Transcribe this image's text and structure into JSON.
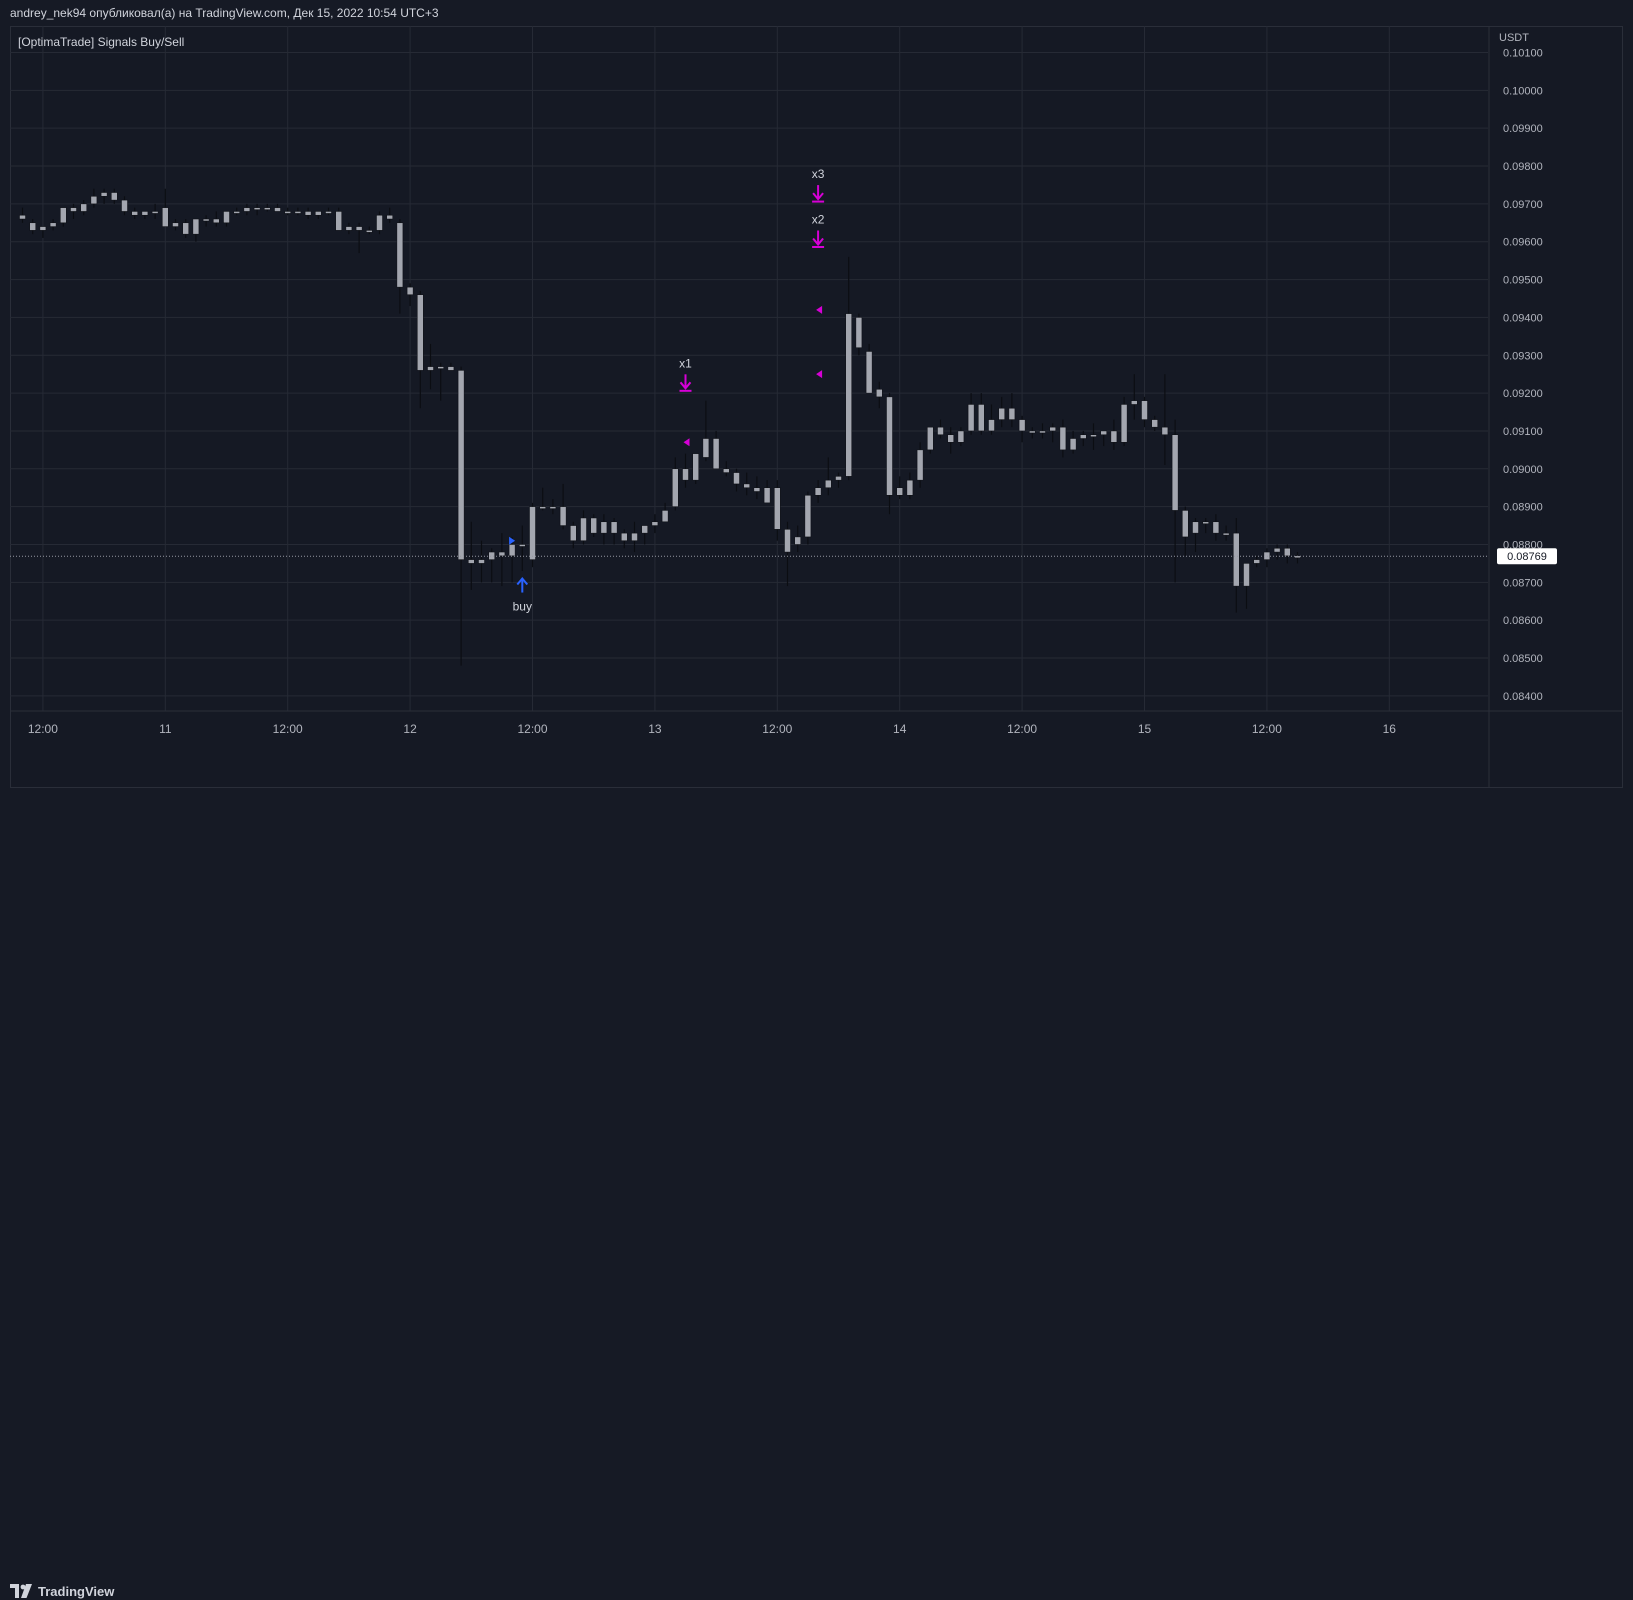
{
  "header": {
    "publisher_line": "andrey_nek94 опубликовал(а) на TradingView.com, Дек 15, 2022 10:54 UTC+3"
  },
  "indicator": {
    "label": "[OptimaTrade] Signals Buy/Sell"
  },
  "footer": {
    "brand": "TradingView"
  },
  "colors": {
    "background": "#151924",
    "grid": "#262a35",
    "candle_body": "#a3a6af",
    "wick": "#0b0d12",
    "signal_magenta": "#d600d6",
    "signal_blue": "#2962ff",
    "axis_text": "#b2b5be"
  },
  "chart_data": {
    "type": "candlestick",
    "currency": "USDT",
    "ylim": [
      0.0836,
      0.1017
    ],
    "y_ticks": [
      "0.08400",
      "0.08500",
      "0.08600",
      "0.08700",
      "0.08800",
      "0.08900",
      "0.09000",
      "0.09100",
      "0.09200",
      "0.09300",
      "0.09400",
      "0.09500",
      "0.09600",
      "0.09700",
      "0.09800",
      "0.09900",
      "0.10000",
      "0.10100"
    ],
    "x_ticks": [
      {
        "label": "12:00",
        "idx": 2
      },
      {
        "label": "11",
        "idx": 14
      },
      {
        "label": "12:00",
        "idx": 26
      },
      {
        "label": "12",
        "idx": 38
      },
      {
        "label": "12:00",
        "idx": 50
      },
      {
        "label": "13",
        "idx": 62
      },
      {
        "label": "12:00",
        "idx": 74
      },
      {
        "label": "14",
        "idx": 86
      },
      {
        "label": "12:00",
        "idx": 98
      },
      {
        "label": "15",
        "idx": 110
      },
      {
        "label": "12:00",
        "idx": 122
      },
      {
        "label": "16",
        "idx": 134
      }
    ],
    "candles": [
      [
        0.0967,
        0.0969,
        0.0965,
        0.0966
      ],
      [
        0.0965,
        0.0966,
        0.0962,
        0.0963
      ],
      [
        0.0963,
        0.0964,
        0.0961,
        0.0964
      ],
      [
        0.0964,
        0.0966,
        0.0963,
        0.0965
      ],
      [
        0.0965,
        0.0969,
        0.0964,
        0.0969
      ],
      [
        0.0969,
        0.097,
        0.0966,
        0.0968
      ],
      [
        0.0968,
        0.0971,
        0.0967,
        0.097
      ],
      [
        0.097,
        0.0974,
        0.0969,
        0.0972
      ],
      [
        0.0972,
        0.0974,
        0.097,
        0.0973
      ],
      [
        0.0973,
        0.0974,
        0.097,
        0.0971
      ],
      [
        0.0971,
        0.0972,
        0.0967,
        0.0968
      ],
      [
        0.0968,
        0.0969,
        0.0966,
        0.0967
      ],
      [
        0.0967,
        0.0968,
        0.0966,
        0.0968
      ],
      [
        0.0968,
        0.097,
        0.0966,
        0.0968
      ],
      [
        0.0969,
        0.0974,
        0.0964,
        0.0964
      ],
      [
        0.0964,
        0.0966,
        0.0963,
        0.0965
      ],
      [
        0.0965,
        0.0966,
        0.0961,
        0.0962
      ],
      [
        0.0962,
        0.0966,
        0.096,
        0.0966
      ],
      [
        0.0966,
        0.0967,
        0.0964,
        0.0966
      ],
      [
        0.0966,
        0.0968,
        0.0964,
        0.0965
      ],
      [
        0.0965,
        0.0968,
        0.0964,
        0.0968
      ],
      [
        0.0968,
        0.0969,
        0.0967,
        0.0968
      ],
      [
        0.0968,
        0.097,
        0.0967,
        0.0969
      ],
      [
        0.0969,
        0.097,
        0.0967,
        0.0969
      ],
      [
        0.0969,
        0.097,
        0.0968,
        0.0969
      ],
      [
        0.0969,
        0.097,
        0.0968,
        0.0968
      ],
      [
        0.0968,
        0.0969,
        0.0967,
        0.0968
      ],
      [
        0.0968,
        0.0969,
        0.0967,
        0.0968
      ],
      [
        0.0968,
        0.0969,
        0.0966,
        0.0967
      ],
      [
        0.0967,
        0.0968,
        0.0966,
        0.0968
      ],
      [
        0.0968,
        0.0969,
        0.0967,
        0.0968
      ],
      [
        0.0968,
        0.0969,
        0.0963,
        0.0963
      ],
      [
        0.0963,
        0.0965,
        0.0962,
        0.0964
      ],
      [
        0.0964,
        0.0965,
        0.0957,
        0.0963
      ],
      [
        0.0963,
        0.0964,
        0.0962,
        0.0963
      ],
      [
        0.0963,
        0.0968,
        0.0962,
        0.0967
      ],
      [
        0.0967,
        0.0969,
        0.0965,
        0.0966
      ],
      [
        0.0965,
        0.0966,
        0.0941,
        0.0948
      ],
      [
        0.0948,
        0.0949,
        0.0943,
        0.0946
      ],
      [
        0.0946,
        0.0947,
        0.0916,
        0.0926
      ],
      [
        0.0926,
        0.0933,
        0.0921,
        0.0927
      ],
      [
        0.0927,
        0.0928,
        0.0918,
        0.0927
      ],
      [
        0.0927,
        0.0928,
        0.0926,
        0.0926
      ],
      [
        0.0926,
        0.0927,
        0.0848,
        0.0876
      ],
      [
        0.0876,
        0.0886,
        0.0868,
        0.0875
      ],
      [
        0.0875,
        0.0881,
        0.087,
        0.0876
      ],
      [
        0.0876,
        0.0879,
        0.087,
        0.0878
      ],
      [
        0.0878,
        0.0883,
        0.0869,
        0.0877
      ],
      [
        0.0877,
        0.0882,
        0.087,
        0.088
      ],
      [
        0.088,
        0.0885,
        0.0873,
        0.088
      ],
      [
        0.0876,
        0.0891,
        0.0874,
        0.089
      ],
      [
        0.089,
        0.0895,
        0.0889,
        0.089
      ],
      [
        0.089,
        0.0892,
        0.0888,
        0.089
      ],
      [
        0.089,
        0.0896,
        0.0884,
        0.0885
      ],
      [
        0.0885,
        0.0886,
        0.0879,
        0.0881
      ],
      [
        0.0881,
        0.0889,
        0.088,
        0.0887
      ],
      [
        0.0887,
        0.0888,
        0.0882,
        0.0883
      ],
      [
        0.0883,
        0.0888,
        0.088,
        0.0886
      ],
      [
        0.0886,
        0.0887,
        0.088,
        0.0883
      ],
      [
        0.0883,
        0.0884,
        0.0879,
        0.0881
      ],
      [
        0.0881,
        0.0886,
        0.0878,
        0.0883
      ],
      [
        0.0883,
        0.0884,
        0.088,
        0.0885
      ],
      [
        0.0885,
        0.0888,
        0.0883,
        0.0886
      ],
      [
        0.0886,
        0.0891,
        0.0886,
        0.0889
      ],
      [
        0.089,
        0.0903,
        0.0889,
        0.09
      ],
      [
        0.09,
        0.0904,
        0.0895,
        0.0897
      ],
      [
        0.0897,
        0.0904,
        0.0896,
        0.0904
      ],
      [
        0.0903,
        0.0918,
        0.0902,
        0.0908
      ],
      [
        0.0908,
        0.091,
        0.0901,
        0.09
      ],
      [
        0.09,
        0.0902,
        0.0898,
        0.0899
      ],
      [
        0.0899,
        0.09,
        0.0894,
        0.0896
      ],
      [
        0.0896,
        0.0899,
        0.0893,
        0.0895
      ],
      [
        0.0895,
        0.0898,
        0.0892,
        0.0894
      ],
      [
        0.0895,
        0.0897,
        0.0891,
        0.0891
      ],
      [
        0.0895,
        0.0897,
        0.0881,
        0.0884
      ],
      [
        0.0884,
        0.0886,
        0.0869,
        0.0878
      ],
      [
        0.088,
        0.0885,
        0.0878,
        0.0882
      ],
      [
        0.0882,
        0.0894,
        0.088,
        0.0893
      ],
      [
        0.0893,
        0.0897,
        0.0891,
        0.0895
      ],
      [
        0.0895,
        0.0903,
        0.0893,
        0.0897
      ],
      [
        0.0897,
        0.0899,
        0.0895,
        0.0898
      ],
      [
        0.0898,
        0.0956,
        0.0897,
        0.0941
      ],
      [
        0.094,
        0.0941,
        0.093,
        0.0932
      ],
      [
        0.0931,
        0.0933,
        0.092,
        0.092
      ],
      [
        0.0921,
        0.0923,
        0.0916,
        0.0919
      ],
      [
        0.0919,
        0.092,
        0.0888,
        0.0893
      ],
      [
        0.0895,
        0.0898,
        0.0892,
        0.0893
      ],
      [
        0.0893,
        0.0899,
        0.0892,
        0.0897
      ],
      [
        0.0897,
        0.0907,
        0.0895,
        0.0905
      ],
      [
        0.0905,
        0.0911,
        0.0904,
        0.0911
      ],
      [
        0.0911,
        0.0913,
        0.0908,
        0.0909
      ],
      [
        0.0909,
        0.0911,
        0.0904,
        0.0907
      ],
      [
        0.0907,
        0.0911,
        0.0906,
        0.091
      ],
      [
        0.091,
        0.092,
        0.0909,
        0.0917
      ],
      [
        0.0917,
        0.092,
        0.0909,
        0.091
      ],
      [
        0.091,
        0.0917,
        0.0909,
        0.0913
      ],
      [
        0.0913,
        0.0919,
        0.0911,
        0.0916
      ],
      [
        0.0916,
        0.092,
        0.0911,
        0.0913
      ],
      [
        0.0913,
        0.0914,
        0.0907,
        0.091
      ],
      [
        0.091,
        0.0911,
        0.0908,
        0.091
      ],
      [
        0.091,
        0.0912,
        0.0908,
        0.091
      ],
      [
        0.091,
        0.0912,
        0.0907,
        0.0911
      ],
      [
        0.0911,
        0.0913,
        0.0903,
        0.0905
      ],
      [
        0.0905,
        0.091,
        0.0904,
        0.0908
      ],
      [
        0.0908,
        0.091,
        0.0906,
        0.0909
      ],
      [
        0.0909,
        0.0912,
        0.0905,
        0.0909
      ],
      [
        0.0909,
        0.091,
        0.0906,
        0.091
      ],
      [
        0.091,
        0.0913,
        0.0905,
        0.0907
      ],
      [
        0.0907,
        0.0919,
        0.0906,
        0.0917
      ],
      [
        0.0917,
        0.0925,
        0.0913,
        0.0918
      ],
      [
        0.0918,
        0.0919,
        0.0911,
        0.0913
      ],
      [
        0.0913,
        0.0914,
        0.091,
        0.0911
      ],
      [
        0.0911,
        0.0925,
        0.0901,
        0.0909
      ],
      [
        0.0909,
        0.0913,
        0.087,
        0.0889
      ],
      [
        0.0889,
        0.089,
        0.0877,
        0.0882
      ],
      [
        0.0883,
        0.0887,
        0.0878,
        0.0886
      ],
      [
        0.0886,
        0.0887,
        0.0883,
        0.0886
      ],
      [
        0.0886,
        0.0888,
        0.0881,
        0.0883
      ],
      [
        0.0883,
        0.0885,
        0.0881,
        0.0883
      ],
      [
        0.0883,
        0.0887,
        0.0862,
        0.0869
      ],
      [
        0.0869,
        0.0874,
        0.0863,
        0.0875
      ],
      [
        0.0875,
        0.0877,
        0.0874,
        0.0876
      ],
      [
        0.0876,
        0.0879,
        0.0874,
        0.0878
      ],
      [
        0.0878,
        0.088,
        0.0876,
        0.0879
      ],
      [
        0.0879,
        0.088,
        0.0875,
        0.0877
      ],
      [
        0.0877,
        0.0878,
        0.0875,
        0.0877
      ]
    ],
    "signals": [
      {
        "type": "sell",
        "label": "x1",
        "idx": 65,
        "price": 0.0921
      },
      {
        "type": "sell",
        "label": "x2",
        "idx": 78,
        "price": 0.0959
      },
      {
        "type": "sell",
        "label": "x3",
        "idx": 78,
        "price": 0.0971
      },
      {
        "type": "buy",
        "label": "buy",
        "idx": 49,
        "price": 0.0871
      }
    ],
    "markers": [
      {
        "direction": "right",
        "idx": 48,
        "price": 0.0881,
        "color": "#2962ff"
      },
      {
        "direction": "left",
        "idx": 65,
        "price": 0.0907,
        "color": "#d600d6"
      },
      {
        "direction": "left",
        "idx": 78,
        "price": 0.0942,
        "color": "#d600d6"
      },
      {
        "direction": "left",
        "idx": 78,
        "price": 0.0925,
        "color": "#d600d6"
      }
    ],
    "last_price": "0.08769",
    "last_price_value": 0.08769
  }
}
